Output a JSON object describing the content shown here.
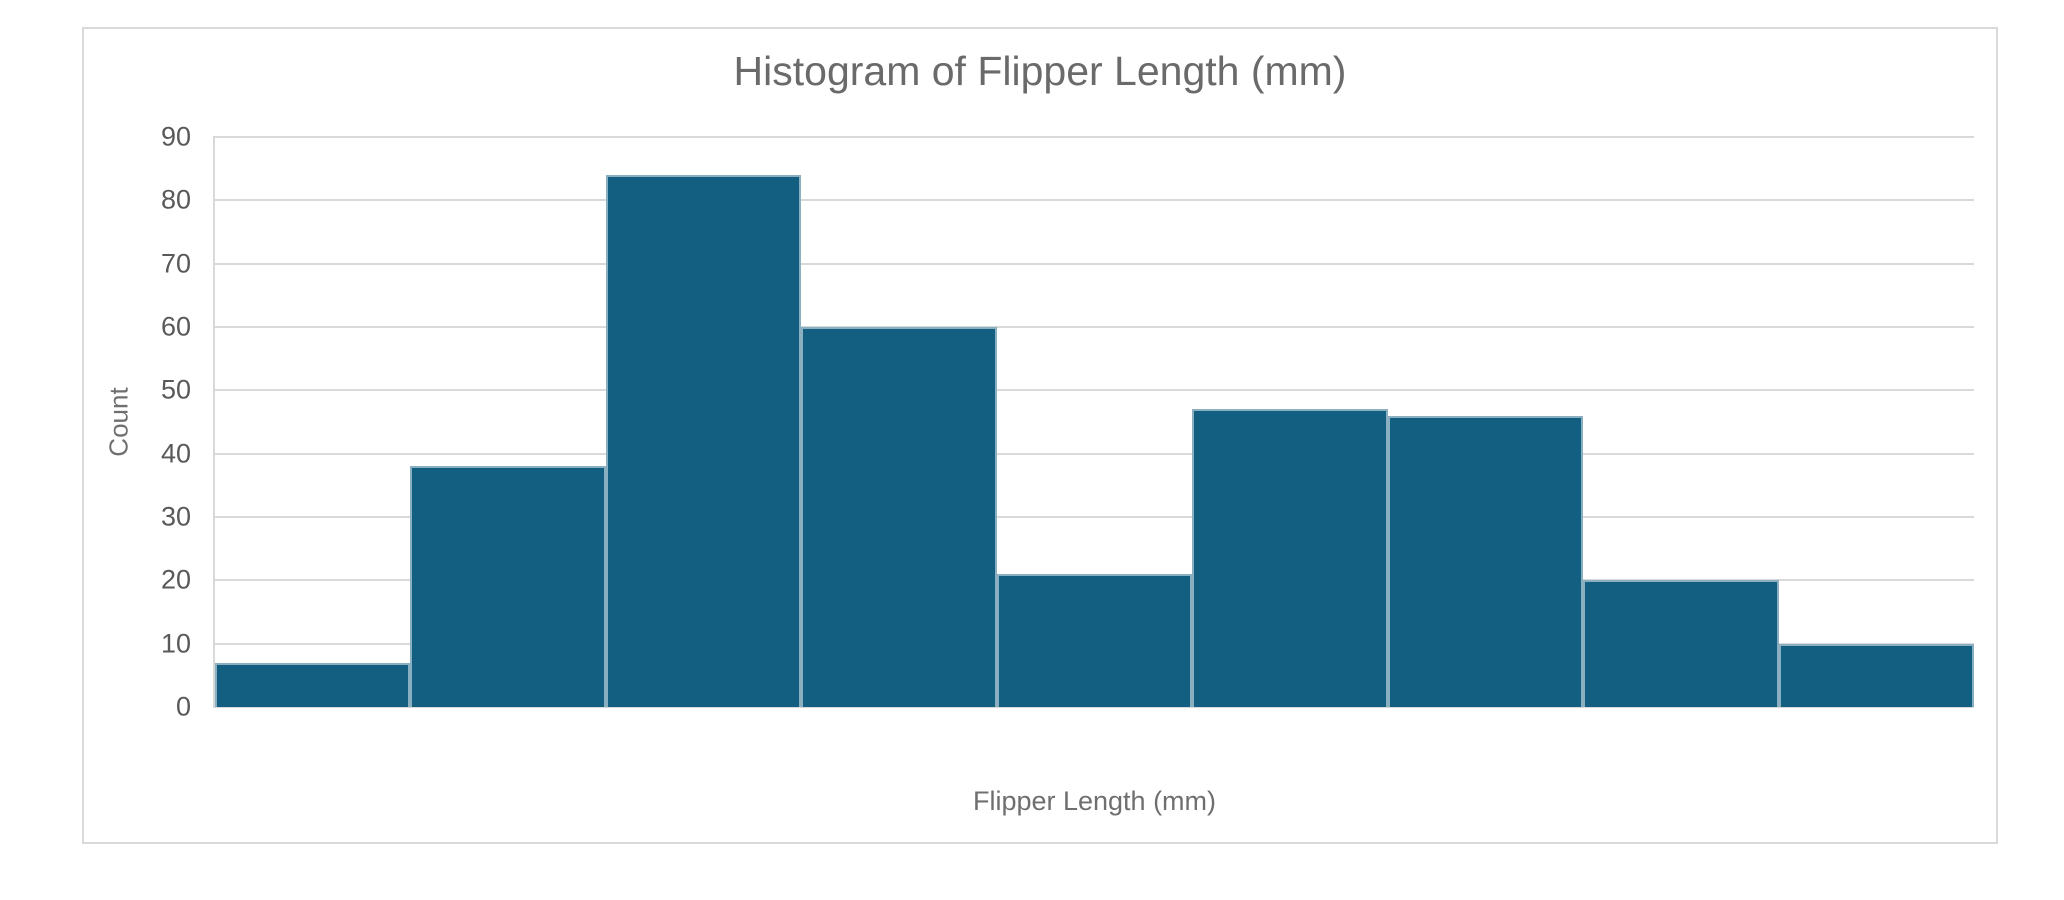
{
  "chart": {
    "colors": {
      "background": "#ffffff",
      "frame_border": "#d9d9d9",
      "gridline": "#d9d9d9",
      "axis_line": "#d9d9d9",
      "bar_fill": "#135f82",
      "bar_separator": "rgba(255,255,255,0.5)",
      "title_text": "#6a6a6a",
      "tick_text": "#595959",
      "axis_title_text": "#6f6f6f"
    }
  },
  "chart_data": {
    "type": "bar",
    "subtype": "histogram",
    "title": "Histogram of Flipper Length (mm)",
    "xlabel": "Flipper Length (mm)",
    "ylabel": "Count",
    "values": [
      7,
      38,
      84,
      60,
      21,
      47,
      46,
      20,
      10
    ],
    "bin_count": 9,
    "x_tick_labels": [],
    "x_tick_labels_visible": false,
    "yticks": [
      0,
      10,
      20,
      30,
      40,
      50,
      60,
      70,
      80,
      90
    ],
    "ylim": [
      0,
      90
    ],
    "grid": "horizontal",
    "legend": "none",
    "bar_color": "#135f82"
  }
}
